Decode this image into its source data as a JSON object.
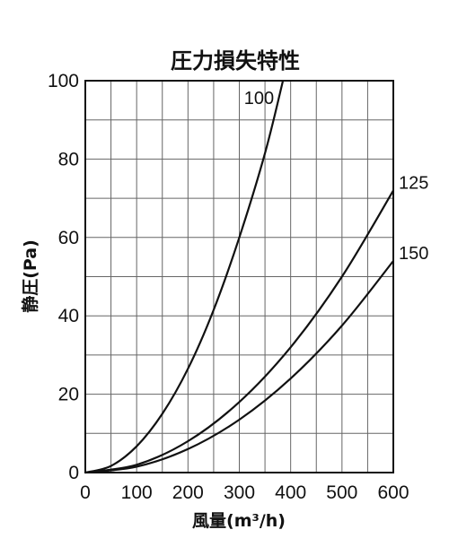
{
  "chart_data": {
    "type": "line",
    "title": "圧力損失特性",
    "xlabel": "風量(m³/h)",
    "ylabel": "静圧(Pa)",
    "xlim": [
      0,
      600
    ],
    "ylim": [
      0,
      100
    ],
    "x_ticks": [
      "0",
      "100",
      "200",
      "300",
      "400",
      "500",
      "600"
    ],
    "y_ticks": [
      "0",
      "20",
      "40",
      "60",
      "80",
      "100"
    ],
    "grid": true,
    "series": [
      {
        "name": "100",
        "x": [
          0,
          50,
          100,
          150,
          200,
          250,
          300,
          350,
          385
        ],
        "y": [
          0,
          1.7,
          6.7,
          15,
          26.5,
          41.5,
          60,
          81.5,
          100
        ]
      },
      {
        "name": "125",
        "x": [
          0,
          100,
          200,
          300,
          400,
          500,
          600
        ],
        "y": [
          0,
          2,
          8,
          18,
          32,
          50,
          72
        ]
      },
      {
        "name": "150",
        "x": [
          0,
          100,
          200,
          300,
          400,
          500,
          600
        ],
        "y": [
          0,
          1.5,
          6,
          13.5,
          24,
          37.5,
          54
        ]
      }
    ]
  }
}
